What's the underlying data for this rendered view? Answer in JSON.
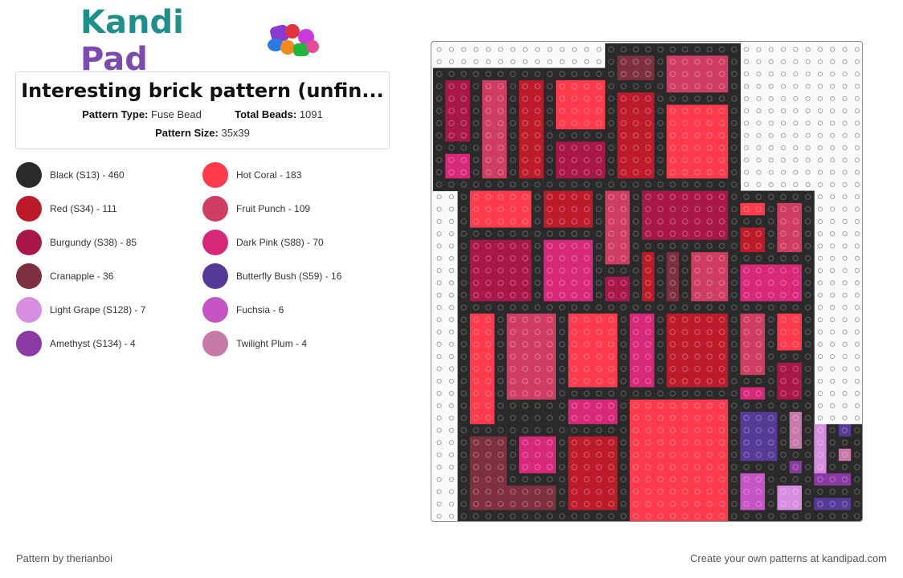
{
  "logo": {
    "name_part1": "Kandi",
    "name_part2": " Pad"
  },
  "pattern": {
    "title": "Interesting brick pattern (unfin...",
    "type_label": "Pattern Type:",
    "type_value": "Fuse Bead",
    "beads_label": "Total Beads:",
    "beads_value": "1091",
    "size_label": "Pattern Size:",
    "size_value": "35x39"
  },
  "legend": [
    {
      "label": "Black (S13) - 460",
      "color": "#2a2a2a"
    },
    {
      "label": "Hot Coral - 183",
      "color": "#ff3a4d"
    },
    {
      "label": "Red (S34) - 111",
      "color": "#bd1a2a"
    },
    {
      "label": "Fruit Punch - 109",
      "color": "#cf3d63"
    },
    {
      "label": "Burgundy (S38) - 85",
      "color": "#a8164a"
    },
    {
      "label": "Dark Pink (S88) - 70",
      "color": "#d8287a"
    },
    {
      "label": "Cranapple - 36",
      "color": "#7e3040"
    },
    {
      "label": "Butterfly Bush (S59) - 16",
      "color": "#553a98"
    },
    {
      "label": "Light Grape (S128) - 7",
      "color": "#d88ee0"
    },
    {
      "label": "Fuchsia - 6",
      "color": "#c654c4"
    },
    {
      "label": "Amethyst (S134) - 4",
      "color": "#8a3aa2"
    },
    {
      "label": "Twilight Plum - 4",
      "color": "#c77aa8"
    }
  ],
  "footer": {
    "author": "Pattern by therianboi",
    "cta": "Create your own patterns at kandipad.com"
  }
}
